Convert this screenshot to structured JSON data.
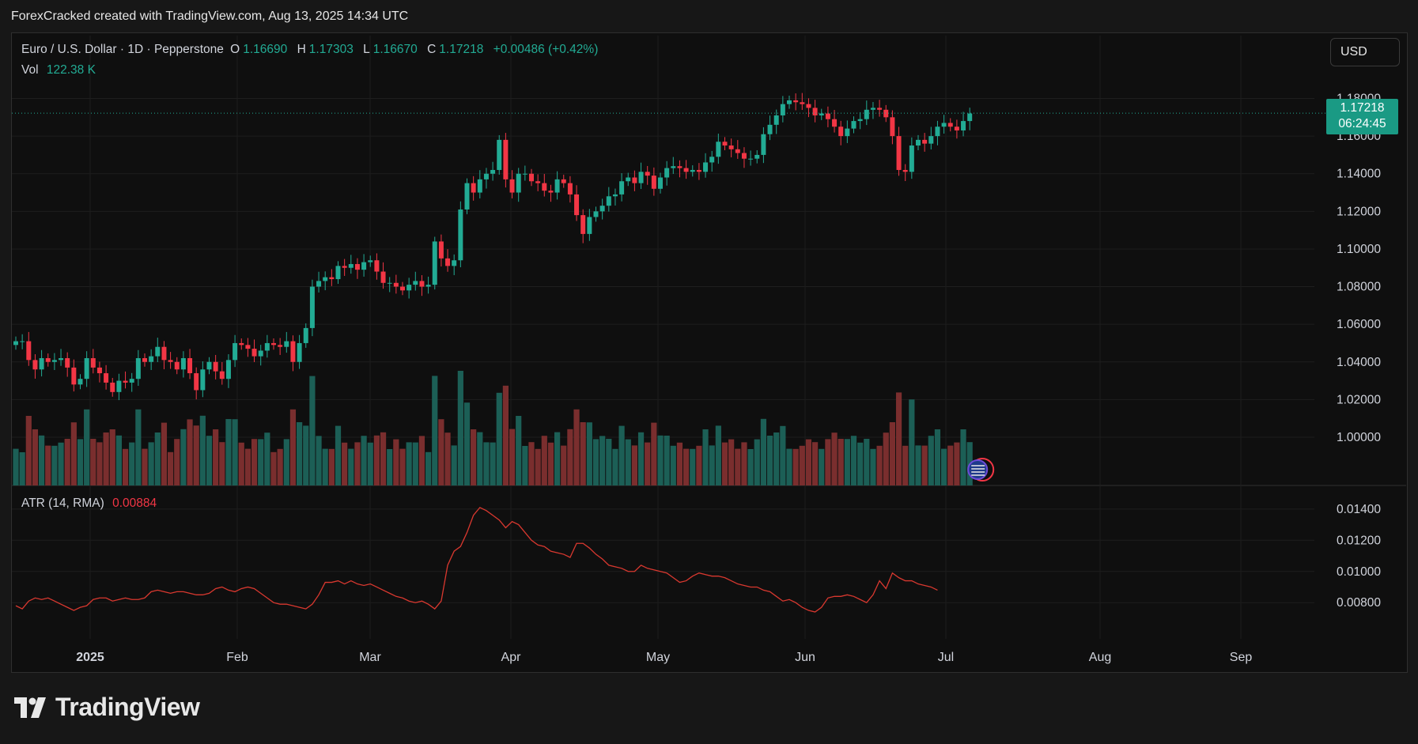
{
  "header": {
    "title": "ForexCracked created with TradingView.com, Aug 13, 2025 14:34 UTC"
  },
  "legend": {
    "symbol": "Euro / U.S. Dollar · 1D · Pepperstone",
    "o_label": "O",
    "o_value": "1.16690",
    "h_label": "H",
    "h_value": "1.17303",
    "l_label": "L",
    "l_value": "1.16670",
    "c_label": "C",
    "c_value": "1.17218",
    "change": "+0.00486 (+0.42%)",
    "vol_label": "Vol",
    "vol_value": "122.38 K",
    "atr_label": "ATR (14, RMA)",
    "atr_value": "0.00884"
  },
  "currency_button": "USD",
  "price_tag": {
    "price": "1.17218",
    "countdown": "06:24:45"
  },
  "brand": {
    "name": "TradingView"
  },
  "colors": {
    "up": "#22ab94",
    "down": "#f23645",
    "vol_up": "#1c5f56",
    "vol_down": "#7a2e2e",
    "atr": "#d9382f",
    "background": "#0f0f0f"
  },
  "chart_data": [
    {
      "type": "candlestick",
      "title": "Euro / U.S. Dollar · 1D · Pepperstone",
      "y_ticks": [
        "1.18000",
        "1.16000",
        "1.14000",
        "1.12000",
        "1.10000",
        "1.08000",
        "1.06000",
        "1.04000",
        "1.02000",
        "1.00000"
      ],
      "ylim": [
        0.992,
        1.184
      ],
      "x_ticks": [
        "2025",
        "Feb",
        "Mar",
        "Apr",
        "May",
        "Jun",
        "Jul",
        "Aug",
        "Sep"
      ],
      "last_close": 1.17218,
      "closes": [
        1.051,
        1.051,
        1.041,
        1.036,
        1.042,
        1.04,
        1.041,
        1.042,
        1.037,
        1.028,
        1.031,
        1.042,
        1.037,
        1.034,
        1.029,
        1.024,
        1.03,
        1.029,
        1.031,
        1.042,
        1.04,
        1.043,
        1.048,
        1.041,
        1.04,
        1.036,
        1.042,
        1.034,
        1.025,
        1.036,
        1.04,
        1.035,
        1.031,
        1.041,
        1.05,
        1.049,
        1.047,
        1.043,
        1.046,
        1.05,
        1.049,
        1.048,
        1.051,
        1.04,
        1.05,
        1.058,
        1.08,
        1.083,
        1.085,
        1.084,
        1.091,
        1.09,
        1.092,
        1.089,
        1.093,
        1.094,
        1.088,
        1.082,
        1.082,
        1.08,
        1.078,
        1.081,
        1.083,
        1.08,
        1.081,
        1.104,
        1.095,
        1.091,
        1.094,
        1.121,
        1.135,
        1.13,
        1.137,
        1.14,
        1.142,
        1.158,
        1.137,
        1.13,
        1.14,
        1.14,
        1.136,
        1.135,
        1.131,
        1.13,
        1.137,
        1.135,
        1.129,
        1.118,
        1.108,
        1.117,
        1.12,
        1.123,
        1.128,
        1.129,
        1.136,
        1.138,
        1.135,
        1.141,
        1.139,
        1.132,
        1.138,
        1.143,
        1.144,
        1.143,
        1.141,
        1.142,
        1.141,
        1.146,
        1.149,
        1.157,
        1.155,
        1.153,
        1.151,
        1.148,
        1.148,
        1.15,
        1.161,
        1.166,
        1.171,
        1.177,
        1.179,
        1.178,
        1.177,
        1.175,
        1.171,
        1.172,
        1.169,
        1.165,
        1.16,
        1.164,
        1.168,
        1.169,
        1.174,
        1.175,
        1.174,
        1.17,
        1.16,
        1.142,
        1.141,
        1.155,
        1.158,
        1.156,
        1.16,
        1.165,
        1.167,
        1.165,
        1.163,
        1.168,
        1.172
      ]
    },
    {
      "type": "bar",
      "title": "Vol",
      "last_value": "122.38 K"
    },
    {
      "type": "line",
      "title": "ATR (14, RMA)",
      "y_ticks": [
        "0.01400",
        "0.01200",
        "0.01000",
        "0.00800"
      ],
      "ylim": [
        0.0073,
        0.0145
      ],
      "values": [
        0.0078,
        0.0076,
        0.0081,
        0.0083,
        0.0082,
        0.0083,
        0.0081,
        0.0079,
        0.0077,
        0.0075,
        0.0077,
        0.0078,
        0.0082,
        0.0083,
        0.0083,
        0.0081,
        0.0082,
        0.0083,
        0.0082,
        0.0082,
        0.0083,
        0.0087,
        0.0088,
        0.0087,
        0.0086,
        0.0087,
        0.0087,
        0.0086,
        0.0085,
        0.0085,
        0.0086,
        0.0089,
        0.009,
        0.0088,
        0.0087,
        0.0089,
        0.009,
        0.0089,
        0.0086,
        0.0083,
        0.008,
        0.0079,
        0.0079,
        0.0078,
        0.0077,
        0.0076,
        0.0079,
        0.0085,
        0.0093,
        0.0093,
        0.0094,
        0.0092,
        0.0094,
        0.0092,
        0.0091,
        0.0092,
        0.009,
        0.0088,
        0.0086,
        0.0084,
        0.0083,
        0.0081,
        0.008,
        0.0081,
        0.0079,
        0.0076,
        0.0081,
        0.0104,
        0.0113,
        0.0116,
        0.0125,
        0.0136,
        0.0141,
        0.0139,
        0.0136,
        0.0133,
        0.0128,
        0.0132,
        0.013,
        0.0125,
        0.012,
        0.0117,
        0.0116,
        0.0113,
        0.0112,
        0.0111,
        0.0109,
        0.0118,
        0.0118,
        0.0115,
        0.0111,
        0.0108,
        0.0104,
        0.0103,
        0.0102,
        0.01,
        0.01,
        0.0104,
        0.0102,
        0.0101,
        0.01,
        0.0099,
        0.0096,
        0.0093,
        0.0094,
        0.0097,
        0.0099,
        0.0098,
        0.0097,
        0.0097,
        0.0096,
        0.0094,
        0.0092,
        0.0091,
        0.009,
        0.009,
        0.0088,
        0.0087,
        0.0084,
        0.0081,
        0.0082,
        0.008,
        0.0077,
        0.0075,
        0.0074,
        0.0077,
        0.0083,
        0.0084,
        0.0084,
        0.0085,
        0.0084,
        0.0082,
        0.008,
        0.0085,
        0.0094,
        0.0089,
        0.0099,
        0.0096,
        0.0094,
        0.0094,
        0.0092,
        0.0091,
        0.009,
        0.0088
      ]
    }
  ]
}
